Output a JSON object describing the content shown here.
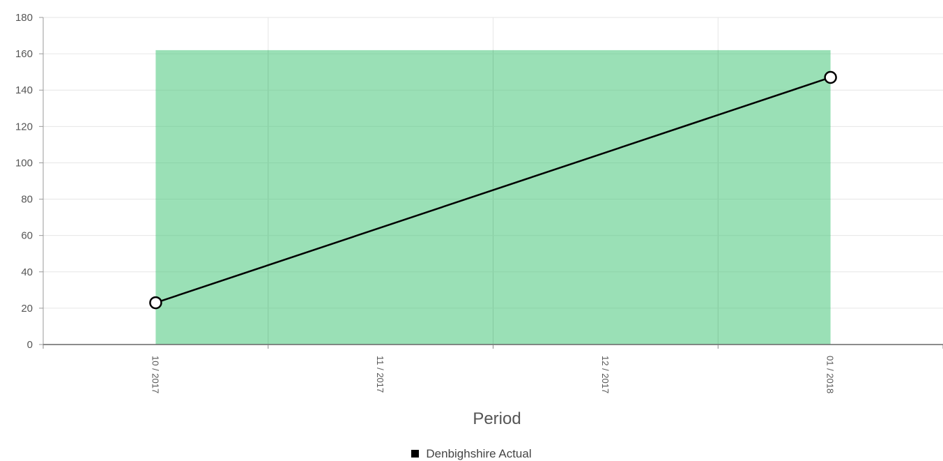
{
  "chart_data": {
    "type": "line",
    "title": "",
    "xlabel": "Period",
    "ylabel": "",
    "ylim": [
      0,
      180
    ],
    "yticks": [
      0,
      20,
      40,
      60,
      80,
      100,
      120,
      140,
      160,
      180
    ],
    "categories": [
      "10 / 2017",
      "11 / 2017",
      "12 / 2017",
      "01 / 2018"
    ],
    "band": {
      "y_top": 162,
      "x_from": "10 / 2017",
      "x_to": "01 / 2018",
      "color": "#9ae0b6"
    },
    "series": [
      {
        "name": "Denbighshire Actual",
        "points": [
          {
            "x": "10 / 2017",
            "y": 23
          },
          {
            "x": "01 / 2018",
            "y": 147
          }
        ],
        "color": "#000000"
      }
    ],
    "grid": true,
    "legend_position": "bottom"
  }
}
